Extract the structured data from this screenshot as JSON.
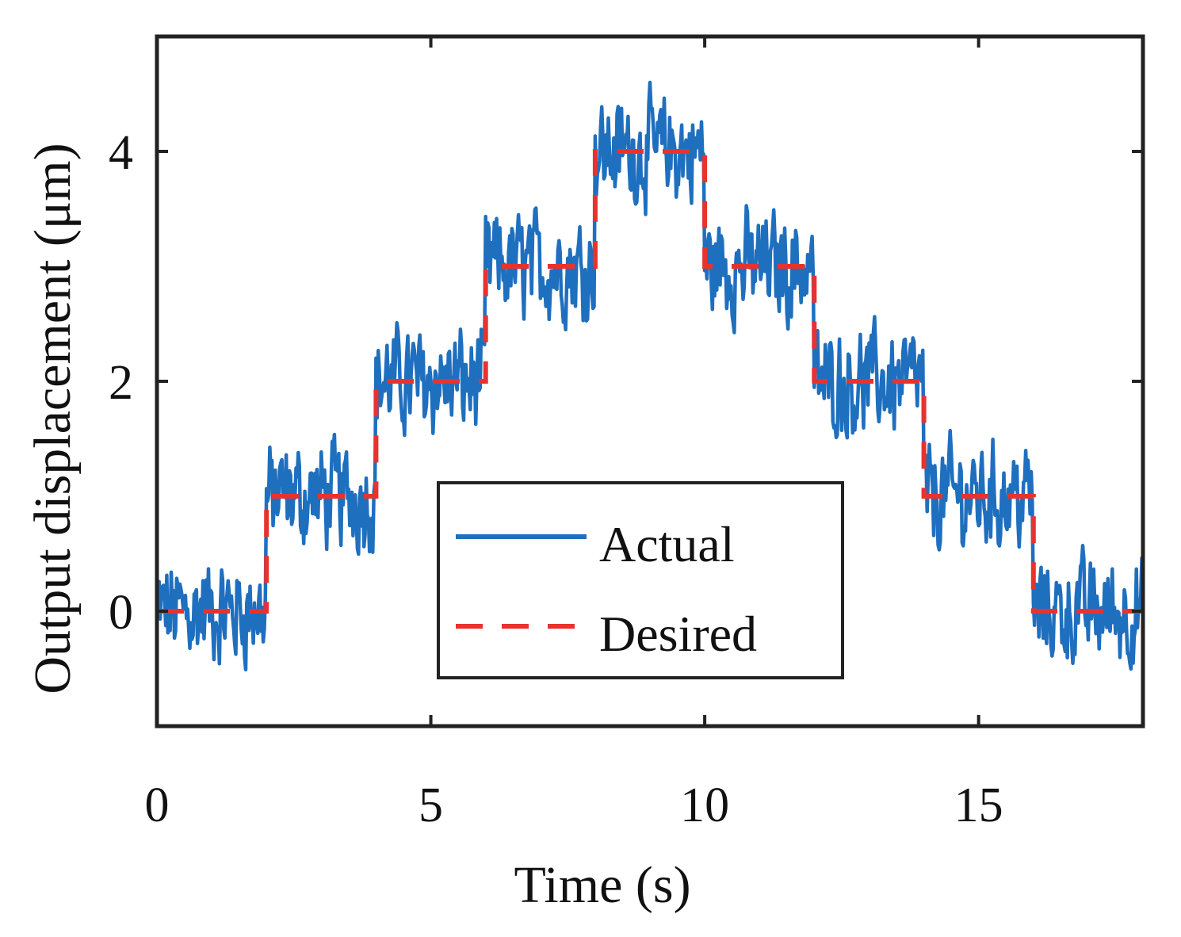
{
  "chart_data": {
    "type": "line",
    "title": "",
    "xlabel": "Time (s)",
    "ylabel": "Output displacement (μm)",
    "xlim": [
      0,
      18
    ],
    "ylim": [
      -1,
      5
    ],
    "xticks": [
      0,
      5,
      10,
      15
    ],
    "yticks": [
      0,
      2,
      4
    ],
    "x_tick_labels": [
      "0",
      "5",
      "10",
      "15"
    ],
    "y_tick_labels": [
      "0",
      "2",
      "4"
    ],
    "grid": false,
    "legend_position": "bottom-center",
    "series": [
      {
        "name": "Actual",
        "style": "solid",
        "color": "#1f6fbf",
        "description": "noisy measured output (about ±0.5 μm) following the desired staircase",
        "noise_amplitude": 0.5
      },
      {
        "name": "Desired",
        "style": "dashed",
        "color": "#e8322e",
        "x": [
          0,
          2,
          2,
          4,
          4,
          6,
          6,
          8,
          8,
          10,
          10,
          12,
          12,
          14,
          14,
          16,
          16,
          18
        ],
        "y": [
          0,
          0,
          1,
          1,
          2,
          2,
          3,
          3,
          4,
          4,
          3,
          3,
          2,
          2,
          1,
          1,
          0,
          0
        ]
      }
    ],
    "legend": {
      "entries": [
        "Actual",
        "Desired"
      ]
    }
  }
}
